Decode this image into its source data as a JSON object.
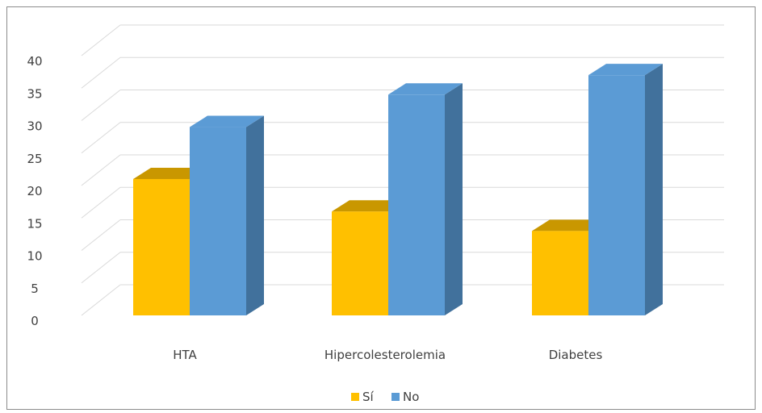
{
  "chart_data": {
    "type": "bar",
    "style": "3d-clustered-column",
    "categories": [
      "HTA",
      "Hipercolesterolemia",
      "Diabetes"
    ],
    "series": [
      {
        "name": "Sí",
        "values": [
          21,
          16,
          13
        ],
        "color": "#FFC000",
        "top_color": "#C99700"
      },
      {
        "name": "No",
        "values": [
          29,
          34,
          37
        ],
        "color": "#5B9BD5",
        "side_color": "#41719C"
      }
    ],
    "yticks": [
      "0",
      "5",
      "10",
      "15",
      "20",
      "25",
      "30",
      "35",
      "40"
    ],
    "ylim": [
      0,
      40
    ],
    "grid": true,
    "legend": "bottom-center"
  }
}
